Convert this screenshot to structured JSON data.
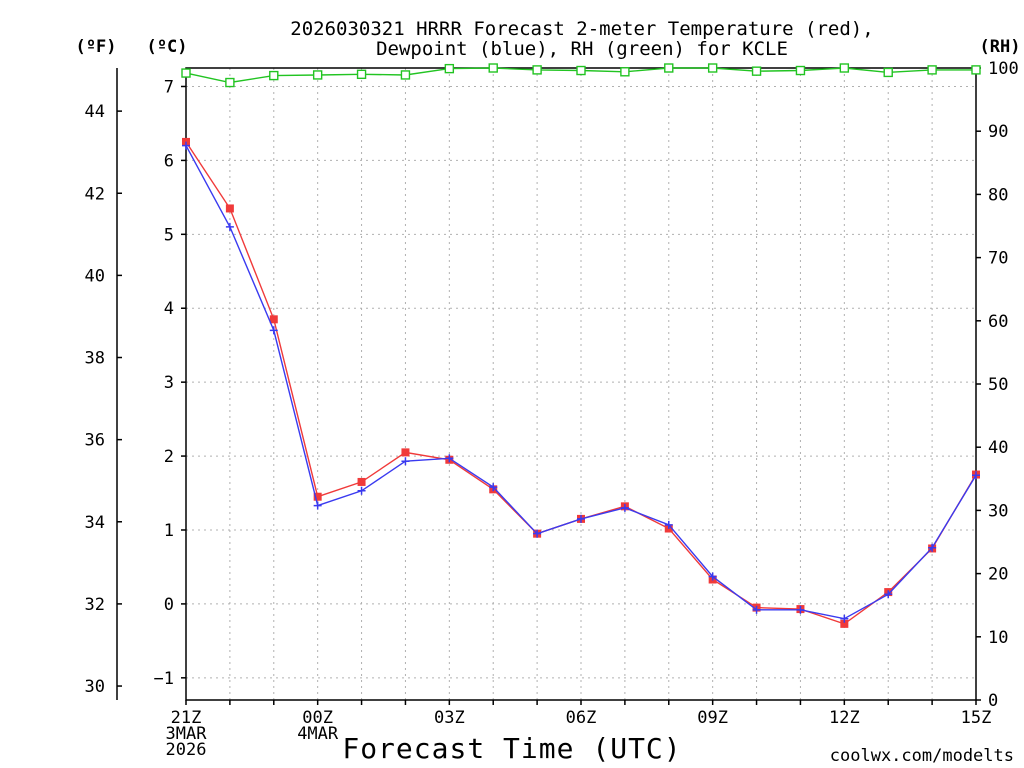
{
  "chart_data": {
    "type": "line",
    "title_lines": [
      "2026030321 HRRR Forecast 2-meter Temperature (red),",
      "Dewpoint (blue), RH (green) for KCLE"
    ],
    "unit_labels": {
      "fahrenheit": "(ºF)",
      "celsius": "(ºC)",
      "rh": "(RH)"
    },
    "xlabel": "Forecast Time (UTC)",
    "credit": "coolwx.com/modelts",
    "credit_color": "#e8303a",
    "x_hours": [
      0,
      1,
      2,
      3,
      4,
      5,
      6,
      7,
      8,
      9,
      10,
      11,
      12,
      13,
      14,
      15,
      16,
      17,
      18
    ],
    "xlim": [
      0,
      18
    ],
    "ylim_c": [
      -1.3,
      7.25
    ],
    "ylim_rh": [
      0,
      100
    ],
    "grid": true,
    "x_ticks": [
      {
        "hour": 0,
        "lines": [
          "21Z",
          "3MAR",
          "2026"
        ]
      },
      {
        "hour": 3,
        "lines": [
          "00Z",
          "4MAR"
        ]
      },
      {
        "hour": 6,
        "lines": [
          "03Z"
        ]
      },
      {
        "hour": 9,
        "lines": [
          "06Z"
        ]
      },
      {
        "hour": 12,
        "lines": [
          "09Z"
        ]
      },
      {
        "hour": 15,
        "lines": [
          "12Z"
        ]
      },
      {
        "hour": 18,
        "lines": [
          "15Z"
        ]
      }
    ],
    "celsius_ticks": [
      {
        "value": -1,
        "label": "−1"
      },
      {
        "value": 0,
        "label": "0"
      },
      {
        "value": 1,
        "label": "1"
      },
      {
        "value": 2,
        "label": "2"
      },
      {
        "value": 3,
        "label": "3"
      },
      {
        "value": 4,
        "label": "4"
      },
      {
        "value": 5,
        "label": "5"
      },
      {
        "value": 6,
        "label": "6"
      },
      {
        "value": 7,
        "label": "7"
      }
    ],
    "fahrenheit_ticks": [
      {
        "value": 30,
        "label": "30"
      },
      {
        "value": 32,
        "label": "32"
      },
      {
        "value": 34,
        "label": "34"
      },
      {
        "value": 36,
        "label": "36"
      },
      {
        "value": 38,
        "label": "38"
      },
      {
        "value": 40,
        "label": "40"
      },
      {
        "value": 42,
        "label": "42"
      },
      {
        "value": 44,
        "label": "44"
      }
    ],
    "rh_ticks": [
      {
        "value": 0,
        "label": "0"
      },
      {
        "value": 10,
        "label": "10"
      },
      {
        "value": 20,
        "label": "20"
      },
      {
        "value": 30,
        "label": "30"
      },
      {
        "value": 40,
        "label": "40"
      },
      {
        "value": 50,
        "label": "50"
      },
      {
        "value": 60,
        "label": "60"
      },
      {
        "value": 70,
        "label": "70"
      },
      {
        "value": 80,
        "label": "80"
      },
      {
        "value": 90,
        "label": "90"
      },
      {
        "value": 100,
        "label": "100"
      }
    ],
    "series": [
      {
        "name": "2-meter Temperature",
        "axis": "celsius",
        "color": "#f03a3a",
        "marker": "filled-square",
        "values": [
          6.25,
          5.35,
          3.85,
          1.45,
          1.65,
          2.05,
          1.95,
          1.55,
          0.95,
          1.15,
          1.32,
          1.02,
          0.33,
          -0.05,
          -0.07,
          -0.27,
          0.16,
          0.75,
          1.75
        ]
      },
      {
        "name": "Dewpoint",
        "axis": "celsius",
        "color": "#3a3af0",
        "marker": "plus",
        "values": [
          6.2,
          5.1,
          3.7,
          1.33,
          1.53,
          1.93,
          1.97,
          1.58,
          0.95,
          1.15,
          1.3,
          1.07,
          0.37,
          -0.08,
          -0.08,
          -0.2,
          0.13,
          0.76,
          1.74
        ]
      },
      {
        "name": "RH",
        "axis": "rh",
        "color": "#22c422",
        "marker": "open-square",
        "values": [
          99.2,
          97.7,
          98.8,
          98.9,
          99.0,
          98.9,
          99.9,
          100,
          99.7,
          99.6,
          99.4,
          100,
          100,
          99.5,
          99.6,
          100,
          99.3,
          99.7,
          99.7
        ]
      }
    ]
  }
}
